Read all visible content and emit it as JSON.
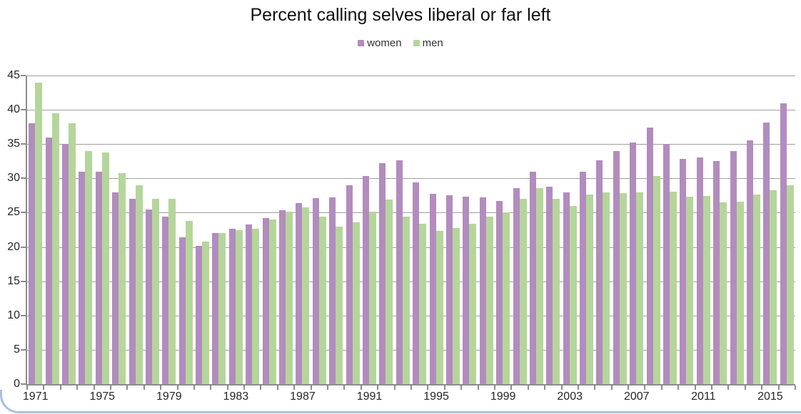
{
  "title": "Percent calling selves liberal or far left",
  "colors": {
    "women": "#b28cbe",
    "men": "#b5d69b",
    "gridline": "#a0a0a0",
    "axis": "#8c8c8c",
    "frame_edge_blue": "#a6bfdd",
    "text": "#262626"
  },
  "legend": {
    "position": "top-center",
    "items": [
      {
        "label": "women",
        "color": "#b28cbe"
      },
      {
        "label": "men",
        "color": "#b5d69b"
      }
    ]
  },
  "chart_data": {
    "type": "bar",
    "title": "Percent calling selves liberal or far left",
    "xlabel": "",
    "ylabel": "",
    "ylim": [
      0,
      45
    ],
    "ytick_interval": 5,
    "ytick_labels": [
      "0",
      "5",
      "10",
      "15",
      "20",
      "25",
      "30",
      "35",
      "40",
      "45"
    ],
    "grid": true,
    "legend_position": "top",
    "categories": [
      1971,
      1972,
      1973,
      1974,
      1975,
      1976,
      1977,
      1978,
      1979,
      1980,
      1981,
      1982,
      1983,
      1984,
      1985,
      1986,
      1987,
      1988,
      1989,
      1990,
      1991,
      1992,
      1993,
      1994,
      1995,
      1996,
      1997,
      1998,
      1999,
      2000,
      2001,
      2002,
      2003,
      2004,
      2005,
      2006,
      2007,
      2008,
      2009,
      2010,
      2011,
      2012,
      2013,
      2014,
      2015,
      2016
    ],
    "xtick_labels": [
      "1971",
      "1975",
      "1979",
      "1983",
      "1987",
      "1991",
      "1995",
      "1999",
      "2003",
      "2007",
      "2011",
      "2015"
    ],
    "series": [
      {
        "name": "women",
        "color": "#b28cbe",
        "values": [
          38,
          36,
          35,
          31,
          31,
          28,
          27,
          25.5,
          24.4,
          21.4,
          20.2,
          22,
          22.7,
          23.3,
          24.2,
          25.4,
          26.4,
          27.1,
          27.2,
          29,
          30.4,
          32.2,
          32.6,
          29.4,
          27.7,
          27.5,
          27.3,
          27.2,
          26.7,
          28.6,
          31,
          28.8,
          28,
          31,
          32.6,
          34,
          35.2,
          37.4,
          35,
          32.8,
          33,
          32.5,
          34,
          35.5,
          38.1,
          41
        ]
      },
      {
        "name": "men",
        "color": "#b5d69b",
        "values": [
          44,
          39.5,
          38,
          34,
          33.8,
          30.8,
          29,
          27,
          27,
          23.8,
          20.8,
          22,
          22.5,
          22.7,
          24,
          25.2,
          25.8,
          24.4,
          23,
          23.6,
          25.2,
          26.9,
          24.4,
          23.4,
          22.3,
          22.8,
          23.4,
          24.4,
          25,
          27,
          28.6,
          27,
          26,
          27.6,
          28,
          27.9,
          28,
          30.4,
          28.1,
          27.3,
          27.4,
          26.5,
          26.6,
          27.6,
          28.3,
          29
        ]
      }
    ]
  }
}
